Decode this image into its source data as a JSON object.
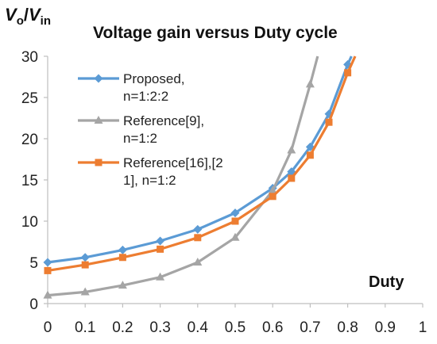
{
  "chart_data": {
    "type": "line",
    "title": "Voltage gain versus Duty cycle",
    "ylabel": {
      "main": "V",
      "sub1": "o",
      "slash": "/",
      "main2": "V",
      "sub2": "in"
    },
    "xlabel": "Duty",
    "xlim": [
      0,
      1
    ],
    "ylim": [
      0,
      30
    ],
    "xticks": [
      "0",
      "0.1",
      "0.2",
      "0.3",
      "0.4",
      "0.5",
      "0.6",
      "0.7",
      "0.8",
      "0.9",
      "1"
    ],
    "yticks": [
      "0",
      "5",
      "10",
      "15",
      "20",
      "25",
      "30"
    ],
    "grid": false,
    "legend_position": "upper-left",
    "series": [
      {
        "name": "Proposed, n=1:2:2",
        "legend_lines": [
          "Proposed,",
          "n=1:2:2"
        ],
        "color": "#5b9bd5",
        "marker": "diamond",
        "x": [
          0,
          0.1,
          0.2,
          0.3,
          0.4,
          0.5,
          0.6,
          0.65,
          0.7,
          0.75,
          0.8,
          0.81
        ],
        "y": [
          5,
          5.6,
          6.5,
          7.6,
          9,
          11,
          14,
          16,
          19,
          23,
          29,
          30
        ]
      },
      {
        "name": "Reference[9], n=1:2",
        "legend_lines": [
          "Reference[9],",
          "n=1:2"
        ],
        "color": "#a5a5a5",
        "marker": "triangle",
        "x": [
          0,
          0.1,
          0.2,
          0.3,
          0.4,
          0.5,
          0.6,
          0.65,
          0.7,
          0.72
        ],
        "y": [
          1,
          1.4,
          2.2,
          3.2,
          5,
          8,
          13.7,
          18.6,
          26.6,
          30
        ]
      },
      {
        "name": "Reference[16],[21], n=1:2",
        "legend_lines": [
          "Reference[16],[2",
          "1], n=1:2"
        ],
        "color": "#ed7d31",
        "marker": "square",
        "x": [
          0,
          0.1,
          0.2,
          0.3,
          0.4,
          0.5,
          0.6,
          0.65,
          0.7,
          0.75,
          0.8,
          0.82
        ],
        "y": [
          4,
          4.7,
          5.6,
          6.6,
          8,
          10,
          13,
          15.2,
          18,
          22,
          28,
          30
        ]
      }
    ]
  }
}
